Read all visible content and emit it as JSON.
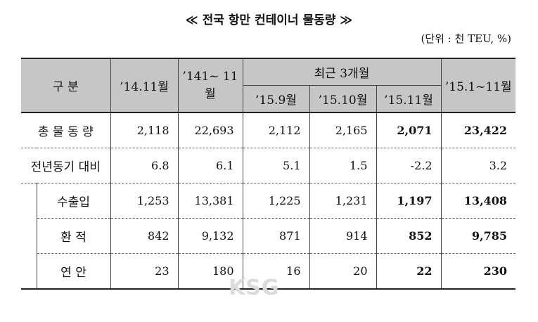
{
  "header": {
    "title": "≪ 전국 항만 컨테이너 물동량 ≫",
    "unit": "(단위 : 천 TEU, %)"
  },
  "table": {
    "head": [
      "구 분",
      "’14.11월",
      "’141~ 11월",
      "최근 3개월",
      "’15.9월",
      "’15.10월",
      "’15.11월",
      "’15.1~11월"
    ],
    "rows": [
      [
        "총 물 동 량",
        "2,118",
        "22,693",
        "2,112",
        "2,165",
        "2,071",
        "23,422"
      ],
      [
        "전년동기 대비",
        "6.8",
        "6.1",
        "5.1",
        "1.5",
        "-2.2",
        "3.2"
      ],
      [
        "수출입",
        "1,253",
        "13,381",
        "1,225",
        "1,231",
        "1,197",
        "13,408"
      ],
      [
        "환 적",
        "842",
        "9,132",
        "871",
        "914",
        "852",
        "9,785"
      ],
      [
        "연 안",
        "23",
        "180",
        "16",
        "20",
        "22",
        "230"
      ]
    ]
  },
  "watermark": "KSG"
}
